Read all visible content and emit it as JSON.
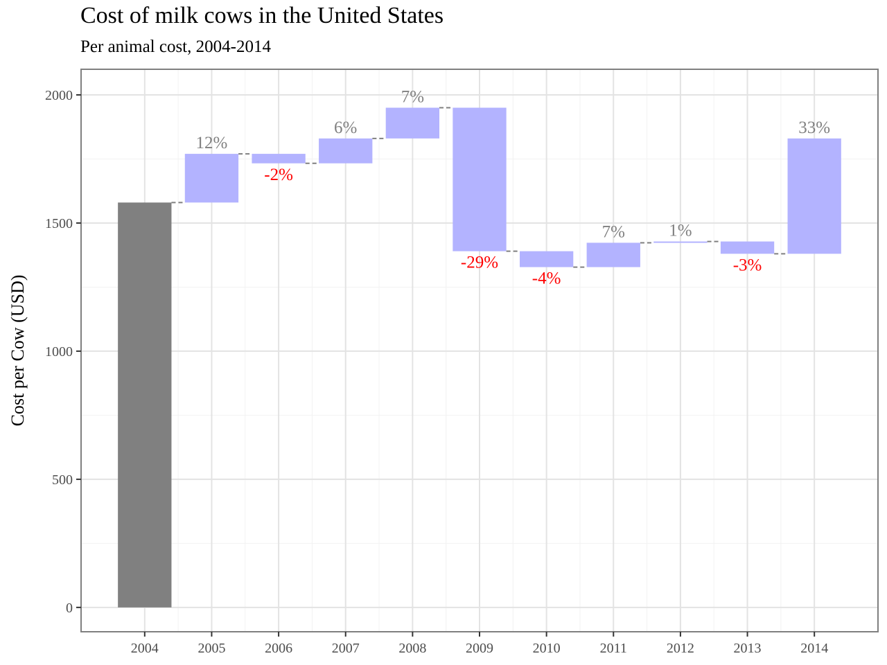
{
  "chart_data": {
    "type": "bar",
    "subtype": "waterfall",
    "title": "Cost of milk cows in the United States",
    "subtitle": "Per animal cost, 2004-2014",
    "xlabel": "",
    "ylabel": "Cost per Cow (USD)",
    "ylim": [
      -95,
      2100
    ],
    "y_ticks": [
      0,
      500,
      1000,
      1500,
      2000
    ],
    "grid": true,
    "categories": [
      "2004",
      "2005",
      "2006",
      "2007",
      "2008",
      "2009",
      "2010",
      "2011",
      "2012",
      "2013",
      "2014"
    ],
    "values": [
      1580,
      1770,
      1733,
      1830,
      1950,
      1390,
      1328,
      1423,
      1428,
      1380,
      1830
    ],
    "percent_labels": [
      "",
      "12%",
      "-2%",
      "6%",
      "7%",
      "-29%",
      "-4%",
      "7%",
      "1%",
      "-3%",
      "33%"
    ],
    "colors": {
      "base": "#808080",
      "change": "#b3b3ff",
      "positive_label": "#808080",
      "negative_label": "#ff0000",
      "connector": "#7f7f7f"
    }
  }
}
